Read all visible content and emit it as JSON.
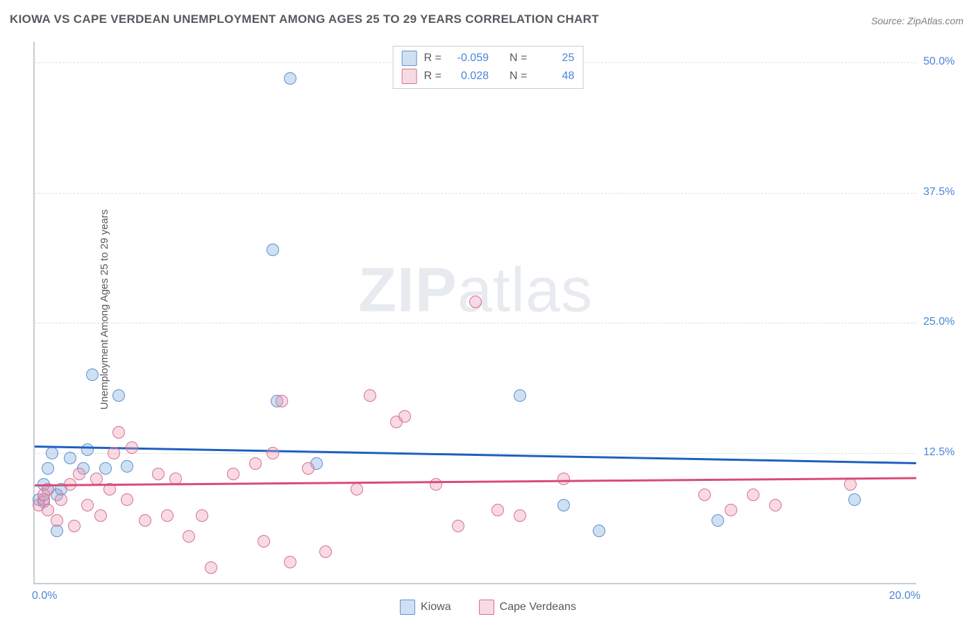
{
  "title": "KIOWA VS CAPE VERDEAN UNEMPLOYMENT AMONG AGES 25 TO 29 YEARS CORRELATION CHART",
  "source": "Source: ZipAtlas.com",
  "ylabel": "Unemployment Among Ages 25 to 29 years",
  "watermark_bold": "ZIP",
  "watermark_rest": "atlas",
  "chart": {
    "type": "scatter-correlation",
    "background_color": "#ffffff",
    "grid_color": "#dcdfe3",
    "axis_color": "#c9ccd0",
    "text_color": "#555a60",
    "value_color": "#4a86d8",
    "xlim": [
      0,
      20
    ],
    "ylim": [
      0,
      52
    ],
    "xtick_labels": [
      {
        "v": 0,
        "label": "0.0%"
      },
      {
        "v": 20,
        "label": "20.0%"
      }
    ],
    "ytick_labels": [
      {
        "v": 12.5,
        "label": "12.5%"
      },
      {
        "v": 25.0,
        "label": "25.0%"
      },
      {
        "v": 37.5,
        "label": "37.5%"
      },
      {
        "v": 50.0,
        "label": "50.0%"
      }
    ],
    "series": [
      {
        "name": "Kiowa",
        "fill": "rgba(120,165,220,0.35)",
        "stroke": "#5b90cf",
        "trend_color": "#1f5fc0",
        "R": "-0.059",
        "N": "25",
        "trend": {
          "y_at_x0": 13.2,
          "y_at_xmax": 11.6
        },
        "points": [
          [
            0.1,
            8.0
          ],
          [
            0.2,
            9.5
          ],
          [
            0.2,
            7.8
          ],
          [
            0.3,
            11.0
          ],
          [
            0.3,
            9.0
          ],
          [
            0.4,
            12.5
          ],
          [
            0.5,
            5.0
          ],
          [
            0.5,
            8.5
          ],
          [
            0.6,
            9.0
          ],
          [
            0.8,
            12.0
          ],
          [
            1.1,
            11.0
          ],
          [
            1.2,
            12.8
          ],
          [
            1.3,
            20.0
          ],
          [
            1.6,
            11.0
          ],
          [
            1.9,
            18.0
          ],
          [
            2.1,
            11.2
          ],
          [
            5.4,
            32.0
          ],
          [
            5.5,
            17.5
          ],
          [
            5.8,
            48.5
          ],
          [
            6.4,
            11.5
          ],
          [
            11.0,
            18.0
          ],
          [
            12.0,
            7.5
          ],
          [
            12.8,
            5.0
          ],
          [
            15.5,
            6.0
          ],
          [
            18.6,
            8.0
          ]
        ]
      },
      {
        "name": "Cape Verdeans",
        "fill": "rgba(235,150,175,0.35)",
        "stroke": "#d76f92",
        "trend_color": "#d94b77",
        "R": "0.028",
        "N": "48",
        "trend": {
          "y_at_x0": 9.5,
          "y_at_xmax": 10.2
        },
        "points": [
          [
            0.1,
            7.5
          ],
          [
            0.2,
            8.0
          ],
          [
            0.2,
            8.5
          ],
          [
            0.3,
            9.0
          ],
          [
            0.3,
            7.0
          ],
          [
            0.5,
            6.0
          ],
          [
            0.6,
            8.0
          ],
          [
            0.8,
            9.5
          ],
          [
            0.9,
            5.5
          ],
          [
            1.0,
            10.5
          ],
          [
            1.2,
            7.5
          ],
          [
            1.4,
            10.0
          ],
          [
            1.5,
            6.5
          ],
          [
            1.7,
            9.0
          ],
          [
            1.8,
            12.5
          ],
          [
            1.9,
            14.5
          ],
          [
            2.1,
            8.0
          ],
          [
            2.2,
            13.0
          ],
          [
            2.5,
            6.0
          ],
          [
            2.8,
            10.5
          ],
          [
            3.0,
            6.5
          ],
          [
            3.2,
            10.0
          ],
          [
            3.5,
            4.5
          ],
          [
            3.8,
            6.5
          ],
          [
            4.0,
            1.5
          ],
          [
            4.5,
            10.5
          ],
          [
            5.0,
            11.5
          ],
          [
            5.2,
            4.0
          ],
          [
            5.4,
            12.5
          ],
          [
            5.6,
            17.5
          ],
          [
            5.8,
            2.0
          ],
          [
            6.2,
            11.0
          ],
          [
            6.6,
            3.0
          ],
          [
            7.3,
            9.0
          ],
          [
            7.6,
            18.0
          ],
          [
            8.2,
            15.5
          ],
          [
            8.4,
            16.0
          ],
          [
            9.1,
            9.5
          ],
          [
            9.6,
            5.5
          ],
          [
            10.0,
            27.0
          ],
          [
            10.5,
            7.0
          ],
          [
            11.0,
            6.5
          ],
          [
            12.0,
            10.0
          ],
          [
            15.2,
            8.5
          ],
          [
            15.8,
            7.0
          ],
          [
            16.3,
            8.5
          ],
          [
            16.8,
            7.5
          ],
          [
            18.5,
            9.5
          ]
        ]
      }
    ],
    "legend_top_border": "#c9ccd0",
    "legend_labels": {
      "R": "R =",
      "N": "N ="
    }
  }
}
